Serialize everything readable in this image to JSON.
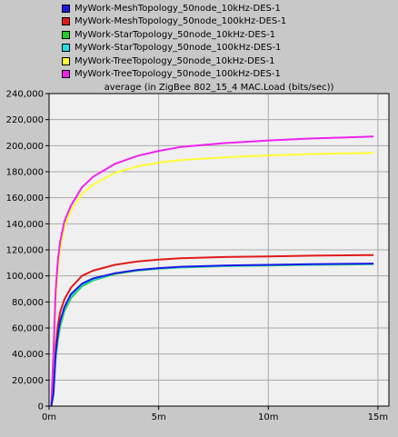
{
  "chart_data": {
    "type": "line",
    "title": "average (in ZigBee 802_15_4 MAC.Load (bits/sec))",
    "xlabel": "",
    "ylabel": "",
    "xlim": [
      0,
      15.5
    ],
    "ylim": [
      0,
      240000
    ],
    "xticks": [
      0,
      5,
      10,
      15
    ],
    "xtick_labels": [
      "0m",
      "5m",
      "10m",
      "15m"
    ],
    "yticks": [
      0,
      20000,
      40000,
      60000,
      80000,
      100000,
      120000,
      140000,
      160000,
      180000,
      200000,
      220000,
      240000
    ],
    "ytick_labels": [
      "0",
      "20,000",
      "40,000",
      "60,000",
      "80,000",
      "100,000",
      "120,000",
      "140,000",
      "160,000",
      "180,000",
      "200,000",
      "220,000",
      "240,000"
    ],
    "grid": true,
    "legend_position": "top",
    "series": [
      {
        "name": "MyWork-MeshTopology_50node_10kHz-DES-1",
        "color": "#1a1ae6",
        "x": [
          0.1,
          0.2,
          0.3,
          0.4,
          0.5,
          0.7,
          1,
          1.5,
          2,
          3,
          4,
          5,
          6,
          8,
          10,
          12,
          14.8
        ],
        "y": [
          0,
          10000,
          40000,
          55000,
          65000,
          76000,
          86000,
          94000,
          98000,
          102000,
          104500,
          106000,
          107000,
          108000,
          108500,
          109000,
          109500
        ]
      },
      {
        "name": "MyWork-MeshTopology_50node_100kHz-DES-1",
        "color": "#e01a1a",
        "x": [
          0.1,
          0.2,
          0.3,
          0.4,
          0.5,
          0.7,
          1,
          1.5,
          2,
          3,
          4,
          5,
          6,
          8,
          10,
          12,
          14.8
        ],
        "y": [
          0,
          12000,
          45000,
          62000,
          72000,
          82000,
          91000,
          100000,
          104000,
          108500,
          111000,
          112500,
          113500,
          114500,
          115000,
          115500,
          116000
        ]
      },
      {
        "name": "MyWork-StarTopology_50node_10kHz-DES-1",
        "color": "#22cc22",
        "x": [
          0.1,
          0.2,
          0.3,
          0.4,
          0.5,
          0.7,
          1,
          1.5,
          2,
          3,
          4,
          5,
          6,
          8,
          10,
          12,
          14.8
        ],
        "y": [
          0,
          8000,
          36000,
          51000,
          61000,
          73000,
          83000,
          92000,
          96500,
          101500,
          104000,
          105500,
          106500,
          107500,
          108000,
          108500,
          109000
        ]
      },
      {
        "name": "MyWork-StarTopology_50node_100kHz-DES-1",
        "color": "#22dddd",
        "x": [
          0.1,
          0.2,
          0.3,
          0.4,
          0.5,
          0.7,
          1,
          1.5,
          2,
          3,
          4,
          5,
          6,
          8,
          10,
          12,
          14.8
        ],
        "y": [
          0,
          9000,
          38000,
          53000,
          63000,
          74500,
          84500,
          93000,
          97000,
          102000,
          104300,
          105700,
          106700,
          107700,
          108200,
          108700,
          109200
        ]
      },
      {
        "name": "MyWork-TreeTopology_50node_10kHz-DES-1",
        "color": "#ffff33",
        "x": [
          0.1,
          0.2,
          0.3,
          0.4,
          0.5,
          0.7,
          1,
          1.5,
          2,
          3,
          4,
          5,
          6,
          8,
          10,
          12,
          14.8
        ],
        "y": [
          0,
          35000,
          80000,
          105000,
          120000,
          138000,
          150000,
          163000,
          170000,
          179000,
          184000,
          187000,
          189000,
          191000,
          192500,
          193500,
          194500
        ]
      },
      {
        "name": "MyWork-TreeTopology_50node_100kHz-DES-1",
        "color": "#ee22ee",
        "x": [
          0.1,
          0.2,
          0.3,
          0.4,
          0.5,
          0.7,
          1,
          1.5,
          2,
          3,
          4,
          5,
          6,
          8,
          10,
          12,
          14.8
        ],
        "y": [
          0,
          40000,
          88000,
          112000,
          126000,
          142000,
          154000,
          168000,
          176000,
          186000,
          192000,
          196000,
          199000,
          202000,
          204000,
          205500,
          207000
        ]
      }
    ]
  }
}
